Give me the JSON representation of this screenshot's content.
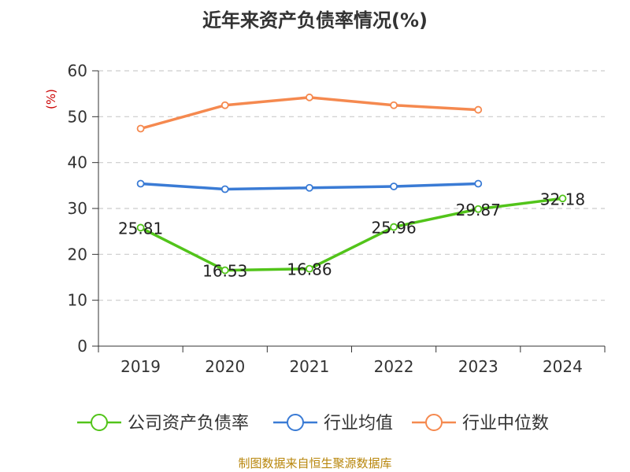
{
  "title": "近年来资产负债率情况(%)",
  "unit_label": "(%)",
  "source": "制图数据来自恒生聚源数据库",
  "colors": {
    "company": "#52c41a",
    "industry_avg": "#3a7bd5",
    "industry_median": "#f5894f",
    "grid": "#cccccc",
    "axis": "#333333",
    "unit": "#cc0000"
  },
  "chart_data": {
    "type": "line",
    "title": "近年来资产负债率情况(%)",
    "xlabel": "",
    "ylabel": "(%)",
    "categories": [
      "2019",
      "2020",
      "2021",
      "2022",
      "2023",
      "2024"
    ],
    "ylim": [
      0,
      60
    ],
    "yticks": [
      0,
      10,
      20,
      30,
      40,
      50,
      60
    ],
    "grid": true,
    "legend": "bottom",
    "series": [
      {
        "name": "公司资产负债率",
        "color": "#52c41a",
        "values": [
          25.81,
          16.53,
          16.86,
          25.96,
          29.87,
          32.18
        ],
        "labels": [
          "25.81",
          "16.53",
          "16.86",
          "25.96",
          "29.87",
          "32.18"
        ]
      },
      {
        "name": "行业均值",
        "color": "#3a7bd5",
        "values": [
          35.4,
          34.2,
          34.5,
          34.8,
          35.4,
          null
        ]
      },
      {
        "name": "行业中位数",
        "color": "#f5894f",
        "values": [
          47.4,
          52.5,
          54.2,
          52.5,
          51.5,
          null
        ]
      }
    ]
  }
}
